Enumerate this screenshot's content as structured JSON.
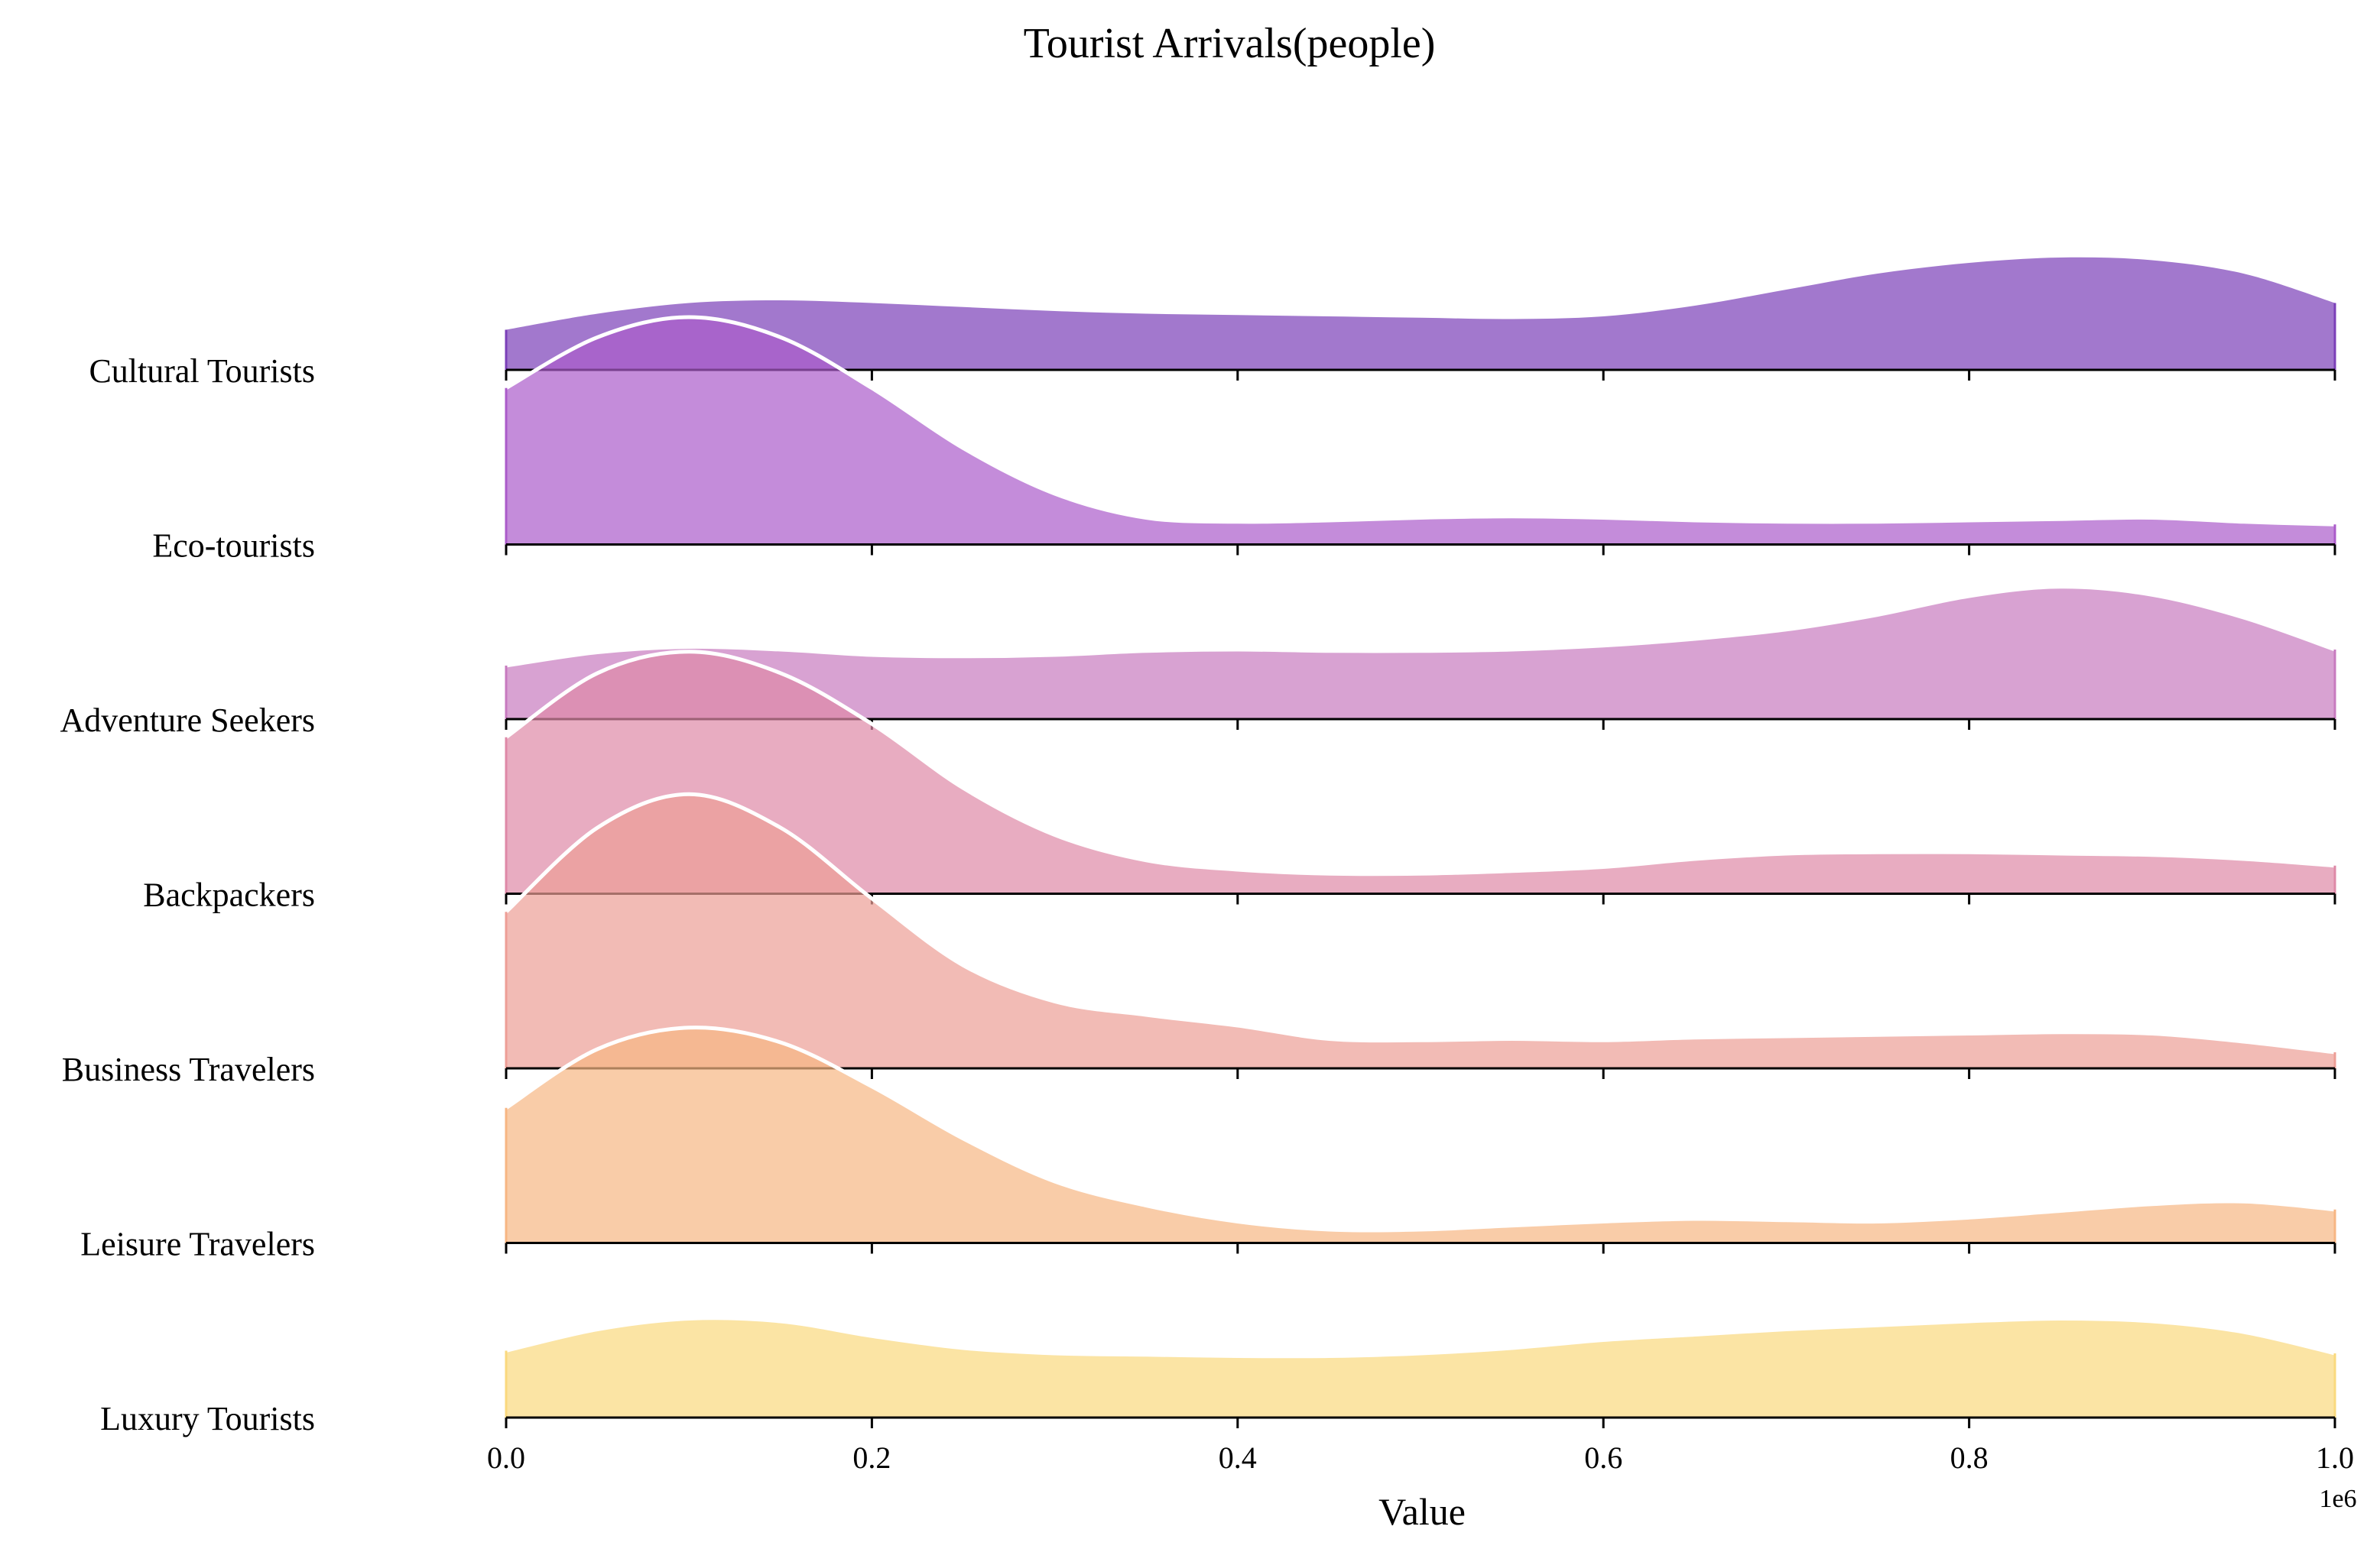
{
  "chart_data": {
    "type": "ridgeline",
    "title": "Tourist Arrivals(people)",
    "xlabel": "Value",
    "x_offset_label": "1e6",
    "xlim": [
      0,
      1000000
    ],
    "x_ticks": [
      0,
      200000,
      400000,
      600000,
      800000,
      1000000
    ],
    "x_tick_labels": [
      "0.0",
      "0.2",
      "0.4",
      "0.6",
      "0.8",
      "1.0"
    ],
    "x": [
      0,
      50000,
      100000,
      150000,
      200000,
      250000,
      300000,
      350000,
      400000,
      450000,
      500000,
      550000,
      600000,
      650000,
      700000,
      750000,
      800000,
      850000,
      900000,
      950000,
      1000000
    ],
    "series": [
      {
        "name": "Cultural Tourists",
        "color": "#7b3fb8",
        "values": [
          0.3,
          0.42,
          0.5,
          0.52,
          0.5,
          0.47,
          0.44,
          0.42,
          0.41,
          0.4,
          0.39,
          0.38,
          0.4,
          0.48,
          0.6,
          0.72,
          0.8,
          0.84,
          0.82,
          0.72,
          0.5
        ]
      },
      {
        "name": "Eco-tourists",
        "color": "#ab5bca",
        "values": [
          1.17,
          1.55,
          1.7,
          1.55,
          1.17,
          0.72,
          0.38,
          0.2,
          0.17,
          0.18,
          0.2,
          0.21,
          0.2,
          0.18,
          0.17,
          0.17,
          0.18,
          0.19,
          0.2,
          0.17,
          0.15
        ]
      },
      {
        "name": "Adventure Seekers",
        "color": "#c77abf",
        "values": [
          0.4,
          0.5,
          0.54,
          0.52,
          0.48,
          0.47,
          0.48,
          0.51,
          0.52,
          0.51,
          0.51,
          0.52,
          0.55,
          0.6,
          0.67,
          0.78,
          0.92,
          0.99,
          0.93,
          0.76,
          0.52
        ]
      },
      {
        "name": "Backpackers",
        "color": "#de89a7",
        "values": [
          1.17,
          1.65,
          1.81,
          1.65,
          1.27,
          0.79,
          0.44,
          0.25,
          0.18,
          0.15,
          0.15,
          0.17,
          0.2,
          0.26,
          0.3,
          0.31,
          0.31,
          0.3,
          0.29,
          0.26,
          0.21
        ]
      },
      {
        "name": "Business Travelers",
        "color": "#ed9e96",
        "values": [
          1.17,
          1.8,
          2.05,
          1.8,
          1.27,
          0.77,
          0.5,
          0.4,
          0.32,
          0.22,
          0.21,
          0.22,
          0.21,
          0.23,
          0.24,
          0.25,
          0.26,
          0.27,
          0.26,
          0.2,
          0.12
        ]
      },
      {
        "name": "Leisure Travelers",
        "color": "#f7b683",
        "values": [
          1.01,
          1.45,
          1.61,
          1.5,
          1.17,
          0.78,
          0.46,
          0.28,
          0.16,
          0.1,
          0.1,
          0.13,
          0.16,
          0.18,
          0.17,
          0.16,
          0.19,
          0.24,
          0.29,
          0.31,
          0.25
        ]
      },
      {
        "name": "Luxury Tourists",
        "color": "#fad97e",
        "values": [
          0.5,
          0.66,
          0.74,
          0.72,
          0.61,
          0.52,
          0.48,
          0.47,
          0.46,
          0.46,
          0.48,
          0.52,
          0.58,
          0.62,
          0.66,
          0.69,
          0.72,
          0.74,
          0.72,
          0.64,
          0.48
        ]
      }
    ]
  }
}
